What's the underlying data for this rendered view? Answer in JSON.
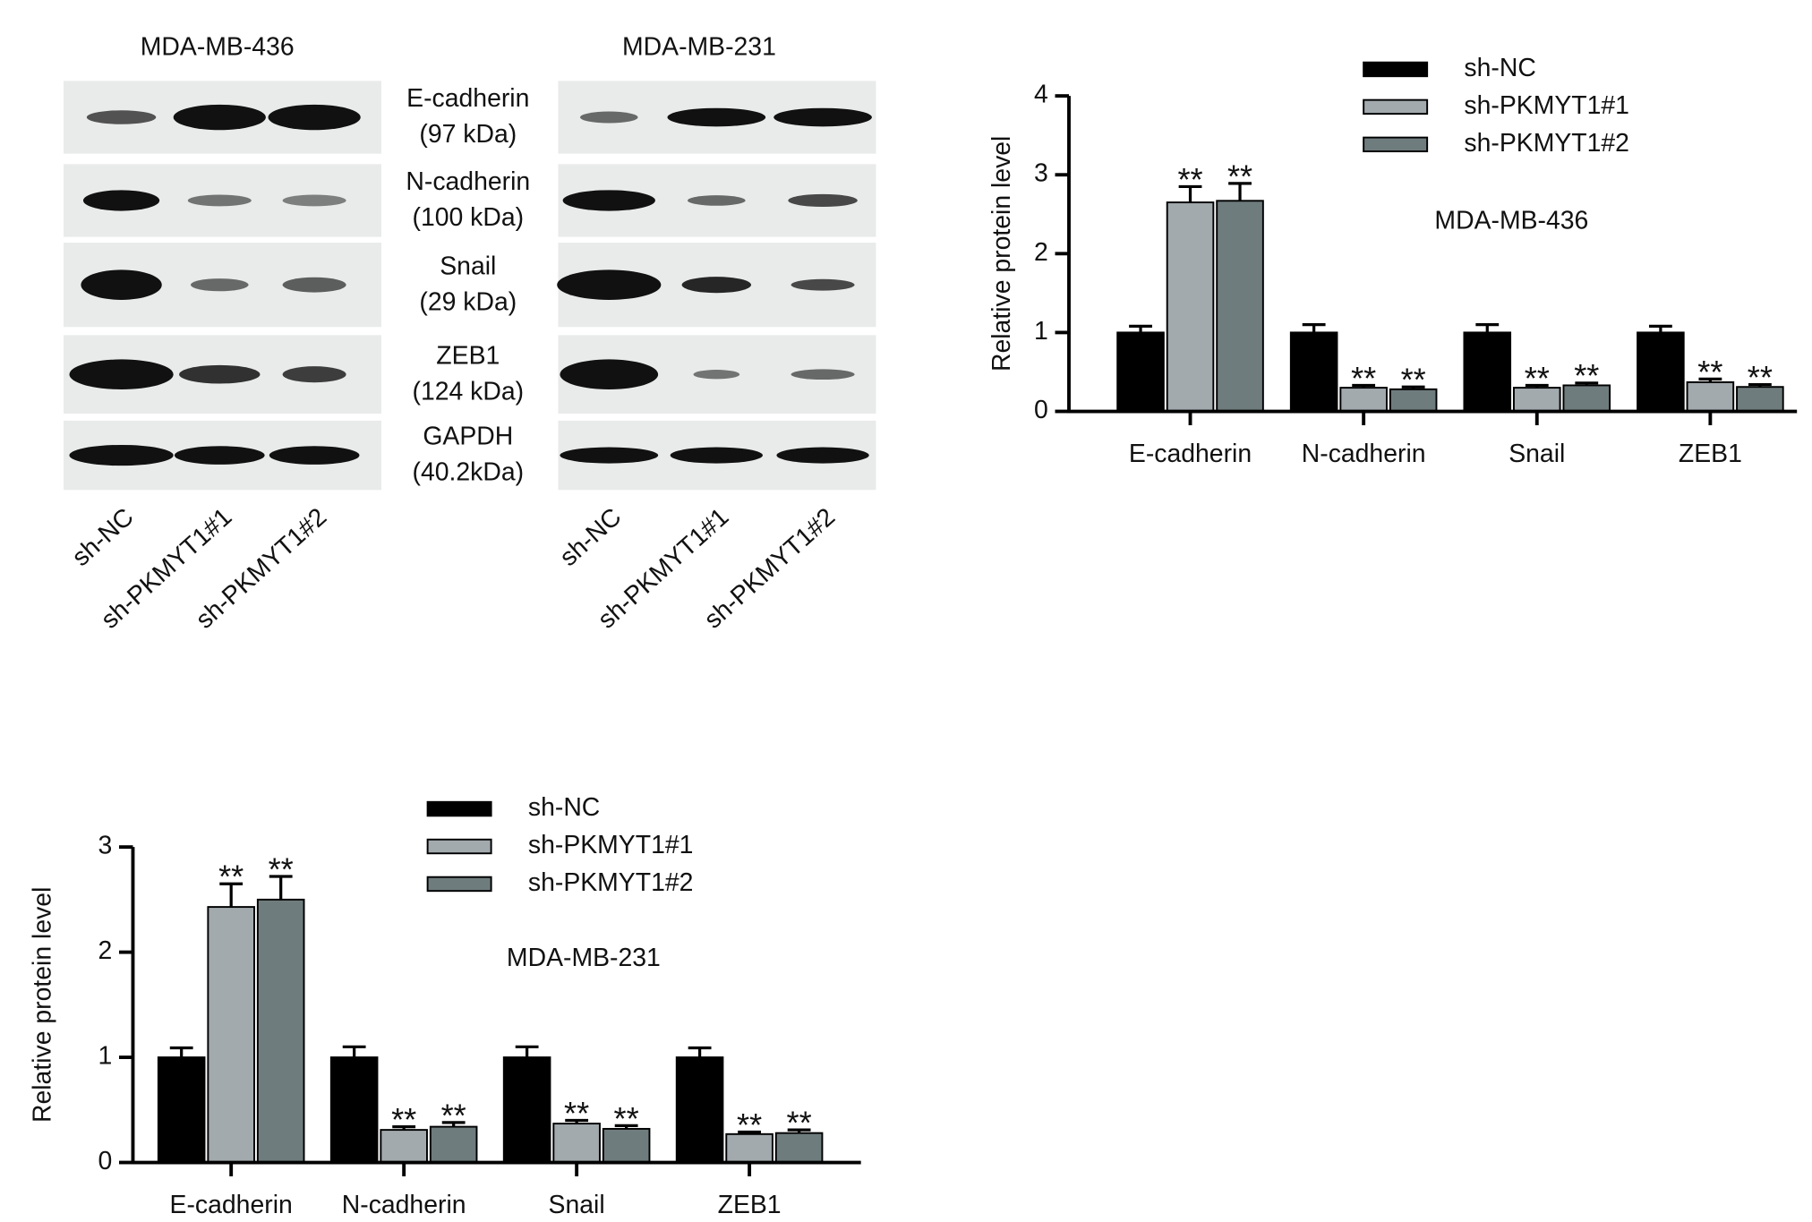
{
  "blots": {
    "panels": [
      "MDA-MB-436",
      "MDA-MB-231"
    ],
    "proteins": [
      {
        "name": "E-cadherin",
        "size": "(97 kDa)"
      },
      {
        "name": "N-cadherin",
        "size": "(100 kDa)"
      },
      {
        "name": "Snail",
        "size": "(29 kDa)"
      },
      {
        "name": "ZEB1",
        "size": "(124 kDa)"
      },
      {
        "name": "GAPDH",
        "size": "(40.2kDa)"
      }
    ],
    "lanes": [
      "sh-NC",
      "sh-PKMYT1#1",
      "sh-PKMYT1#2"
    ]
  },
  "chart_data": [
    {
      "type": "bar",
      "subtitle": "MDA-MB-436",
      "y_label": "Relative protein level",
      "categories": [
        "E-cadherin",
        "N-cadherin",
        "Snail",
        "ZEB1"
      ],
      "ylim": [
        0,
        4
      ],
      "yticks": [
        0,
        1,
        2,
        3,
        4
      ],
      "series": [
        {
          "name": "sh-NC",
          "color": "#000000",
          "values": [
            1,
            1,
            1,
            1
          ],
          "errors": [
            0.08,
            0.1,
            0.1,
            0.08
          ]
        },
        {
          "name": "sh-PKMYT1#1",
          "color": "#a2aaae",
          "values": [
            2.65,
            0.3,
            0.3,
            0.37
          ],
          "errors": [
            0.2,
            0.03,
            0.03,
            0.04
          ],
          "annotations": [
            "**",
            "**",
            "**",
            "**"
          ]
        },
        {
          "name": "sh-PKMYT1#2",
          "color": "#6f7c7d",
          "values": [
            2.67,
            0.28,
            0.33,
            0.31
          ],
          "errors": [
            0.22,
            0.03,
            0.03,
            0.03
          ],
          "annotations": [
            "**",
            "**",
            "**",
            "**"
          ]
        }
      ]
    },
    {
      "type": "bar",
      "subtitle": "MDA-MB-231",
      "y_label": "Relative protein level",
      "categories": [
        "E-cadherin",
        "N-cadherin",
        "Snail",
        "ZEB1"
      ],
      "ylim": [
        0,
        3
      ],
      "yticks": [
        0,
        1,
        2,
        3
      ],
      "series": [
        {
          "name": "sh-NC",
          "color": "#000000",
          "values": [
            1,
            1,
            1,
            1
          ],
          "errors": [
            0.09,
            0.1,
            0.1,
            0.09
          ]
        },
        {
          "name": "sh-PKMYT1#1",
          "color": "#a2aaae",
          "values": [
            2.43,
            0.31,
            0.37,
            0.27
          ],
          "errors": [
            0.22,
            0.03,
            0.03,
            0.02
          ],
          "annotations": [
            "**",
            "**",
            "**",
            "**"
          ]
        },
        {
          "name": "sh-PKMYT1#2",
          "color": "#6f7c7d",
          "values": [
            2.5,
            0.34,
            0.32,
            0.28
          ],
          "errors": [
            0.22,
            0.04,
            0.03,
            0.03
          ],
          "annotations": [
            "**",
            "**",
            "**",
            "**"
          ]
        }
      ]
    }
  ]
}
